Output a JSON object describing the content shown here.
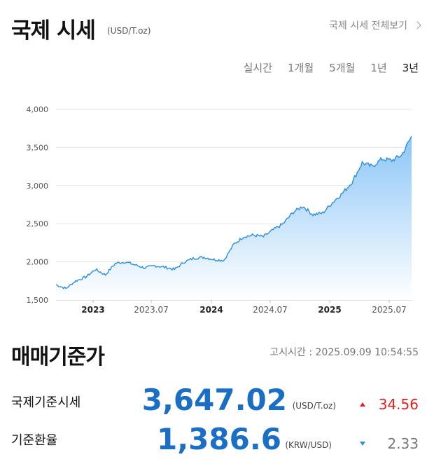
{
  "header": {
    "title": "국제 시세",
    "unit": "(USD/T.oz)",
    "view_all": "국제 시세 전체보기"
  },
  "tabs": [
    {
      "label": "실시간",
      "active": false
    },
    {
      "label": "1개월",
      "active": false
    },
    {
      "label": "5개월",
      "active": false
    },
    {
      "label": "1년",
      "active": false
    },
    {
      "label": "3년",
      "active": true
    }
  ],
  "chart_data": {
    "type": "area",
    "title": "",
    "xlabel": "",
    "ylabel": "",
    "ylim": [
      1500,
      4000
    ],
    "yticks": [
      "4,000",
      "3,500",
      "3,000",
      "2,500",
      "2,000",
      "1,500"
    ],
    "xticks": [
      "2023",
      "2023.07",
      "2024",
      "2024.07",
      "2025",
      "2025.07"
    ],
    "grid": true,
    "series": [
      {
        "x": [
          "2022.09",
          "2022.10",
          "2022.11",
          "2022.12",
          "2023.01",
          "2023.02",
          "2023.03",
          "2023.04",
          "2023.05",
          "2023.06",
          "2023.07",
          "2023.08",
          "2023.09",
          "2023.10",
          "2023.11",
          "2023.12",
          "2024.01",
          "2024.02",
          "2024.03",
          "2024.04",
          "2024.05",
          "2024.06",
          "2024.07",
          "2024.08",
          "2024.09",
          "2024.10",
          "2024.11",
          "2024.12",
          "2025.01",
          "2025.02",
          "2025.03",
          "2025.04",
          "2025.05",
          "2025.06",
          "2025.07",
          "2025.08",
          "2025.09"
        ],
        "values": [
          1700,
          1650,
          1750,
          1800,
          1900,
          1830,
          1980,
          2000,
          1960,
          1920,
          1950,
          1930,
          1900,
          2000,
          2050,
          2060,
          2030,
          2020,
          2230,
          2330,
          2350,
          2330,
          2420,
          2500,
          2650,
          2730,
          2620,
          2640,
          2780,
          2900,
          3050,
          3300,
          3250,
          3350,
          3330,
          3400,
          3647
        ]
      }
    ],
    "colors": {
      "line": "#2e8ee0",
      "fill_top": "#8cc6f7",
      "fill_bottom": "#ffffff"
    }
  },
  "section": {
    "title": "매매기준가",
    "timestamp": "고시시간 : 2025.09.09 10:54:55"
  },
  "rows": [
    {
      "label": "국제기준시세",
      "value": "3,647.02",
      "unit": "(USD/T.oz)",
      "direction": "up",
      "change": "34.56",
      "change_color": "#e02020"
    },
    {
      "label": "기준환율",
      "value": "1,386.6",
      "unit": "(KRW/USD)",
      "direction": "down",
      "change": "2.33",
      "change_color": "#777777"
    }
  ]
}
